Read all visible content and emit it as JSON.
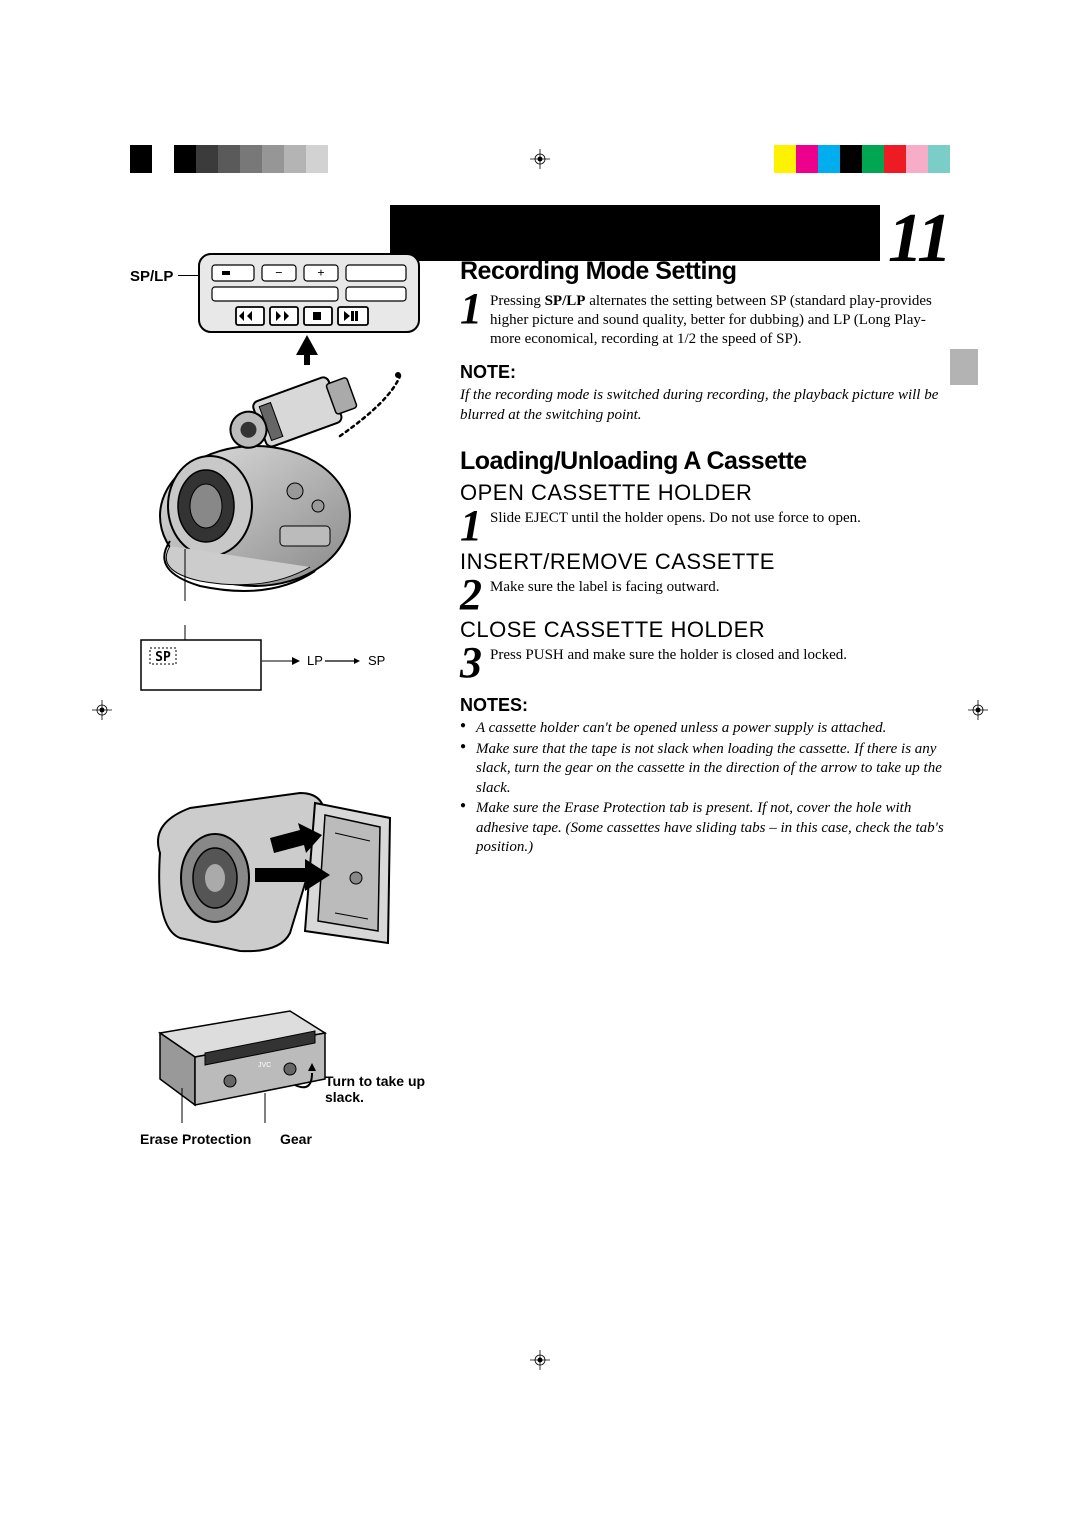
{
  "page_number": "11",
  "color_bar": {
    "left_set": [
      "#000000",
      "#ffffff",
      "#000000",
      "#3b3b3b",
      "#5a5a5a",
      "#787878",
      "#969696",
      "#b4b4b4",
      "#d2d2d2",
      "#ffffff"
    ],
    "right_set": [
      "#fff200",
      "#ec008c",
      "#00aeef",
      "#000000",
      "#00a651",
      "#ed1c24",
      "#f7adc8",
      "#7bcdc8"
    ],
    "left_widths": [
      22,
      22,
      22,
      22,
      22,
      22,
      22,
      22,
      22,
      22
    ],
    "right_widths": [
      22,
      22,
      22,
      22,
      22,
      22,
      22,
      22
    ],
    "gap": 210
  },
  "left_column": {
    "sp_lp_label": "SP/LP",
    "lcd": {
      "sp_box": "SP",
      "lp_text": "LP",
      "sp_text": "SP"
    },
    "cassette_labels": {
      "turn_slack": "Turn to take up slack.",
      "erase_protection": "Erase Protection",
      "gear": "Gear"
    }
  },
  "right_column": {
    "section1_title": "Recording Mode Setting",
    "section1_step1": {
      "num": "1",
      "text_parts": [
        "Pressing ",
        "SP/LP",
        " alternates the setting between SP (standard play-provides higher picture and sound quality, better for dubbing) and LP (Long Play-more economical, recording at 1/2 the speed of SP)."
      ]
    },
    "note_heading": "NOTE:",
    "note_text": "If the recording mode is switched during recording, the playback picture will be blurred at the switching point.",
    "section2_title": "Loading/Unloading A Cassette",
    "steps": [
      {
        "num": "1",
        "heading": "OPEN CASSETTE HOLDER",
        "text": "Slide EJECT until the holder opens. Do not use force to open."
      },
      {
        "num": "2",
        "heading": "INSERT/REMOVE CASSETTE",
        "text": "Make sure the label is facing outward."
      },
      {
        "num": "3",
        "heading": "CLOSE CASSETTE HOLDER",
        "text": "Press PUSH and make sure the holder is closed and locked."
      }
    ],
    "notes_heading": "NOTES:",
    "notes_list": [
      "A cassette holder can't be opened unless a power supply is attached.",
      "Make sure that the tape is not slack when loading the cassette. If there is any slack, turn the gear on the cassette in the direction of the arrow to take up the slack.",
      "Make sure the Erase Protection tab is present. If not, cover the hole with adhesive tape. (Some cassettes have sliding tabs – in this case, check the tab's position.)"
    ]
  }
}
